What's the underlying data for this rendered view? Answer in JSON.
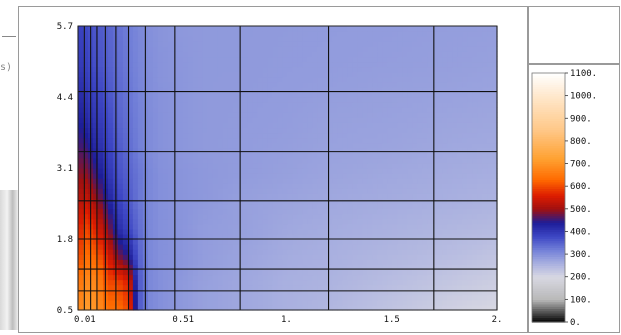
{
  "chart_data": {
    "type": "heatmap",
    "title": "",
    "xlabel": "",
    "ylabel": "",
    "xlim": [
      0.01,
      2
    ],
    "ylim": [
      0.5,
      5.7
    ],
    "x_ticks": [
      {
        "value": 0.01,
        "label": "0.01"
      },
      {
        "value": 0.51,
        "label": "0.51"
      },
      {
        "value": 1.0,
        "label": "1."
      },
      {
        "value": 1.5,
        "label": "1.5"
      },
      {
        "value": 2.0,
        "label": "2."
      }
    ],
    "y_ticks": [
      {
        "value": 0.5,
        "label": "0.5"
      },
      {
        "value": 1.8,
        "label": "1.8"
      },
      {
        "value": 3.1,
        "label": "3.1"
      },
      {
        "value": 4.4,
        "label": "4.4"
      },
      {
        "value": 5.7,
        "label": "5.7"
      }
    ],
    "mesh_x": [
      0.01,
      0.04,
      0.07,
      0.1,
      0.14,
      0.19,
      0.25,
      0.33,
      0.47,
      0.78,
      1.2,
      1.7,
      2.0
    ],
    "mesh_y": [
      0.5,
      0.85,
      1.25,
      1.8,
      2.5,
      3.4,
      4.5,
      5.7
    ],
    "x": [
      0.01,
      0.05,
      0.1,
      0.15,
      0.2,
      0.25,
      0.3,
      0.35,
      0.4,
      0.5,
      0.6,
      0.8,
      1.0,
      1.2,
      1.5,
      1.8,
      2.0
    ],
    "y": [
      0.5,
      1.0,
      1.5,
      2.0,
      2.5,
      3.0,
      3.5,
      4.0,
      4.5,
      5.0,
      5.7
    ],
    "z": [
      [
        680,
        720,
        700,
        640,
        640,
        600,
        360,
        310,
        300,
        290,
        280,
        270,
        260,
        250,
        230,
        210,
        200
      ],
      [
        640,
        690,
        680,
        600,
        600,
        560,
        360,
        310,
        300,
        290,
        280,
        270,
        260,
        255,
        240,
        225,
        215
      ],
      [
        590,
        640,
        620,
        560,
        480,
        440,
        350,
        310,
        300,
        295,
        285,
        275,
        265,
        260,
        250,
        240,
        230
      ],
      [
        560,
        600,
        560,
        490,
        420,
        380,
        340,
        310,
        300,
        295,
        285,
        280,
        270,
        265,
        258,
        250,
        245
      ],
      [
        520,
        540,
        500,
        440,
        390,
        360,
        330,
        310,
        300,
        295,
        290,
        280,
        275,
        270,
        265,
        260,
        255
      ],
      [
        490,
        490,
        450,
        410,
        370,
        350,
        330,
        310,
        300,
        295,
        290,
        285,
        280,
        275,
        270,
        265,
        262
      ],
      [
        460,
        450,
        420,
        390,
        360,
        340,
        320,
        305,
        298,
        292,
        288,
        285,
        282,
        278,
        275,
        270,
        268
      ],
      [
        440,
        420,
        400,
        380,
        350,
        335,
        318,
        305,
        298,
        292,
        288,
        286,
        284,
        280,
        278,
        274,
        272
      ],
      [
        420,
        400,
        385,
        365,
        345,
        330,
        315,
        303,
        297,
        292,
        288,
        287,
        285,
        283,
        280,
        278,
        276
      ],
      [
        400,
        385,
        370,
        355,
        340,
        325,
        312,
        302,
        296,
        292,
        288,
        288,
        286,
        285,
        283,
        281,
        279
      ],
      [
        390,
        375,
        362,
        350,
        335,
        322,
        310,
        300,
        295,
        290,
        288,
        288,
        287,
        286,
        285,
        283,
        282
      ]
    ],
    "colorbar": {
      "min": 0,
      "max": 1100,
      "ticks": [
        {
          "value": 1100,
          "label": "1100."
        },
        {
          "value": 1000,
          "label": "1000."
        },
        {
          "value": 900,
          "label": "900."
        },
        {
          "value": 800,
          "label": "800."
        },
        {
          "value": 700,
          "label": "700."
        },
        {
          "value": 600,
          "label": "600."
        },
        {
          "value": 500,
          "label": "500."
        },
        {
          "value": 400,
          "label": "400."
        },
        {
          "value": 300,
          "label": "300."
        },
        {
          "value": 200,
          "label": "200."
        },
        {
          "value": 100,
          "label": "100."
        },
        {
          "value": 0,
          "label": "0."
        }
      ],
      "stops": [
        {
          "value": 0,
          "color": "#000000"
        },
        {
          "value": 100,
          "color": "#b8b8b8"
        },
        {
          "value": 200,
          "color": "#d8d8e2"
        },
        {
          "value": 260,
          "color": "#a9b0e0"
        },
        {
          "value": 320,
          "color": "#7280d8"
        },
        {
          "value": 380,
          "color": "#3d46c4"
        },
        {
          "value": 440,
          "color": "#1d1d98"
        },
        {
          "value": 500,
          "color": "#a01010"
        },
        {
          "value": 560,
          "color": "#dd1c00"
        },
        {
          "value": 630,
          "color": "#ff6a00"
        },
        {
          "value": 720,
          "color": "#ffa030"
        },
        {
          "value": 850,
          "color": "#ffc888"
        },
        {
          "value": 1000,
          "color": "#ffe8cc"
        },
        {
          "value": 1100,
          "color": "#ffffff"
        }
      ]
    }
  },
  "edge": {
    "stub_text": "s)"
  }
}
